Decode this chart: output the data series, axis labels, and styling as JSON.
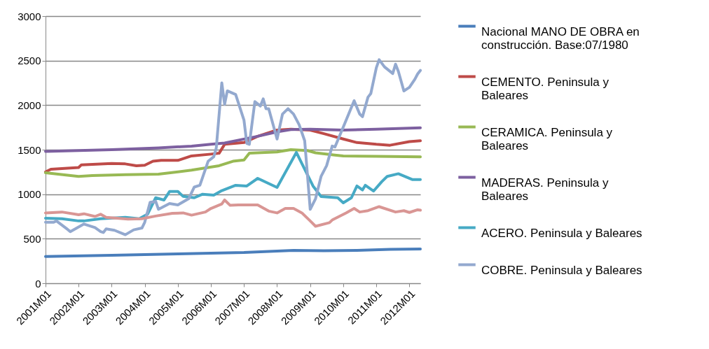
{
  "chart_data": {
    "type": "line",
    "xlim": [
      "2001-01",
      "2012-05"
    ],
    "xticks": [
      {
        "value": "2001-01",
        "label": "2001M01"
      },
      {
        "value": "2002-01",
        "label": "2002M01"
      },
      {
        "value": "2003-01",
        "label": "2003M01"
      },
      {
        "value": "2004-01",
        "label": "2004M01"
      },
      {
        "value": "2005-01",
        "label": "2005M01"
      },
      {
        "value": "2006-01",
        "label": "2006M01"
      },
      {
        "value": "2007-01",
        "label": "2007M01"
      },
      {
        "value": "2008-01",
        "label": "2008M01"
      },
      {
        "value": "2009-01",
        "label": "2009M01"
      },
      {
        "value": "2010-01",
        "label": "2010M01"
      },
      {
        "value": "2011-01",
        "label": "2011M01"
      },
      {
        "value": "2012-01",
        "label": "2012M01"
      }
    ],
    "ylim": [
      0,
      3000
    ],
    "yticks": [
      0,
      500,
      1000,
      1500,
      2000,
      2500,
      3000
    ],
    "grid": "y",
    "legend": "right",
    "marker": "none",
    "line_style": "solid",
    "series": [
      {
        "name": "Nacional MANO DE OBRA en construcción. Base:07/1980",
        "color": "#4a7ebb",
        "x": [
          "2001-01",
          "2003-01",
          "2005-01",
          "2007-01",
          "2008-07",
          "2009-06",
          "2010-06",
          "2011-06",
          "2012-05"
        ],
        "values": [
          300,
          315,
          330,
          345,
          370,
          365,
          370,
          380,
          385
        ]
      },
      {
        "name": "CEMENTO. Peninsula y Baleares",
        "color": "#be4b48",
        "x": [
          "2001-01",
          "2001-03",
          "2002-01",
          "2002-02",
          "2003-01",
          "2003-06",
          "2003-10",
          "2004-01",
          "2004-04",
          "2004-07",
          "2005-01",
          "2005-06",
          "2006-01",
          "2006-04",
          "2006-06",
          "2007-01",
          "2007-06",
          "2008-01",
          "2008-06",
          "2009-01",
          "2009-06",
          "2010-01",
          "2010-06",
          "2011-01",
          "2011-06",
          "2012-01",
          "2012-05"
        ],
        "values": [
          1250,
          1280,
          1300,
          1330,
          1345,
          1340,
          1320,
          1325,
          1370,
          1380,
          1380,
          1430,
          1450,
          1460,
          1560,
          1580,
          1650,
          1720,
          1730,
          1720,
          1680,
          1620,
          1580,
          1560,
          1550,
          1590,
          1600
        ]
      },
      {
        "name": "CERAMICA. Peninsula y Baleares",
        "color": "#98b954",
        "x": [
          "2001-01",
          "2002-01",
          "2002-06",
          "2003-06",
          "2004-06",
          "2005-06",
          "2006-04",
          "2006-09",
          "2007-01",
          "2007-03",
          "2008-01",
          "2008-06",
          "2008-12",
          "2009-03",
          "2009-10",
          "2010-01",
          "2011-01",
          "2012-05"
        ],
        "values": [
          1240,
          1200,
          1210,
          1220,
          1225,
          1270,
          1320,
          1370,
          1385,
          1460,
          1475,
          1500,
          1490,
          1465,
          1440,
          1430,
          1425,
          1420
        ]
      },
      {
        "name": "MADERAS. Peninsula y Baleares",
        "color": "#7d60a0",
        "x": [
          "2001-01",
          "2003-01",
          "2004-06",
          "2005-06",
          "2006-01",
          "2006-06",
          "2007-06",
          "2008-01",
          "2008-06",
          "2009-01",
          "2010-01",
          "2011-01",
          "2012-05"
        ],
        "values": [
          1480,
          1500,
          1520,
          1540,
          1560,
          1575,
          1650,
          1700,
          1725,
          1730,
          1720,
          1730,
          1745
        ]
      },
      {
        "name": "ACERO. Peninsula y Baleares",
        "color": "#46aac5",
        "x": [
          "2001-01",
          "2001-07",
          "2002-01",
          "2002-03",
          "2002-09",
          "2003-06",
          "2003-11",
          "2004-02",
          "2004-05",
          "2004-08",
          "2004-10",
          "2005-01",
          "2005-03",
          "2005-07",
          "2005-10",
          "2006-02",
          "2006-05",
          "2006-10",
          "2007-02",
          "2007-06",
          "2008-01",
          "2008-08",
          "2009-02",
          "2009-05",
          "2009-11",
          "2010-01",
          "2010-04",
          "2010-06",
          "2010-08",
          "2010-09",
          "2010-12",
          "2011-03",
          "2011-05",
          "2011-09",
          "2012-02",
          "2012-05"
        ],
        "values": [
          730,
          725,
          700,
          700,
          725,
          740,
          725,
          775,
          960,
          935,
          1030,
          1030,
          975,
          960,
          1000,
          990,
          1040,
          1100,
          1092,
          1178,
          1076,
          1469,
          1092,
          974,
          960,
          903,
          960,
          1092,
          1048,
          1100,
          1035,
          1140,
          1200,
          1230,
          1165,
          1165
        ]
      },
      {
        "name": "COBRE. Peninsula y Baleares",
        "color": "#93a9cf",
        "x": [
          "2001-01",
          "2001-04",
          "2001-05",
          "2001-09",
          "2001-10",
          "2002-03",
          "2002-07",
          "2002-09",
          "2002-10",
          "2002-11",
          "2003-02",
          "2003-06",
          "2003-09",
          "2003-12",
          "2004-01",
          "2004-03",
          "2004-05",
          "2004-06",
          "2004-10",
          "2005-01",
          "2005-05",
          "2005-07",
          "2005-09",
          "2005-12",
          "2006-02",
          "2006-03",
          "2006-05",
          "2006-06",
          "2006-07",
          "2006-10",
          "2007-01",
          "2007-02",
          "2007-03",
          "2007-05",
          "2007-07",
          "2007-08",
          "2007-09",
          "2007-10",
          "2008-01",
          "2008-03",
          "2008-05",
          "2008-07",
          "2008-09",
          "2008-11",
          "2009-01",
          "2009-03",
          "2009-05",
          "2009-07",
          "2009-09",
          "2009-10",
          "2010-02",
          "2010-05",
          "2010-07",
          "2010-08",
          "2010-10",
          "2010-11",
          "2011-01",
          "2011-02",
          "2011-04",
          "2011-07",
          "2011-08",
          "2011-09",
          "2011-11",
          "2012-01",
          "2012-03",
          "2012-04",
          "2012-05"
        ],
        "values": [
          685,
          685,
          700,
          605,
          580,
          665,
          625,
          580,
          570,
          610,
          595,
          545,
          600,
          620,
          685,
          910,
          920,
          830,
          895,
          880,
          950,
          1080,
          1100,
          1370,
          1420,
          1520,
          2250,
          2010,
          2160,
          2120,
          1830,
          1570,
          1560,
          2040,
          1990,
          2070,
          1960,
          1960,
          1620,
          1900,
          1960,
          1900,
          1780,
          1600,
          830,
          950,
          1200,
          1320,
          1540,
          1530,
          1830,
          2050,
          1900,
          1870,
          2090,
          2130,
          2420,
          2510,
          2430,
          2355,
          2460,
          2380,
          2160,
          2200,
          2290,
          2350,
          2390
        ]
      },
      {
        "color": "#d99694",
        "x": [
          "2001-01",
          "2001-07",
          "2002-01",
          "2002-03",
          "2002-07",
          "2002-09",
          "2002-11",
          "2003-07",
          "2003-12",
          "2004-05",
          "2004-11",
          "2005-03",
          "2005-06",
          "2005-11",
          "2006-01",
          "2006-05",
          "2006-06",
          "2006-08",
          "2006-11",
          "2007-06",
          "2007-10",
          "2008-01",
          "2008-04",
          "2008-07",
          "2008-10",
          "2009-01",
          "2009-03",
          "2009-08",
          "2009-09",
          "2010-02",
          "2010-05",
          "2010-07",
          "2010-10",
          "2011-02",
          "2011-08",
          "2011-11",
          "2012-01",
          "2012-04",
          "2012-05"
        ],
        "values": [
          790,
          800,
          770,
          780,
          750,
          775,
          740,
          720,
          725,
          755,
          785,
          790,
          765,
          800,
          840,
          890,
          935,
          875,
          880,
          880,
          810,
          790,
          840,
          840,
          790,
          700,
          640,
          680,
          710,
          790,
          840,
          800,
          815,
          860,
          800,
          815,
          795,
          825,
          820
        ]
      }
    ]
  }
}
